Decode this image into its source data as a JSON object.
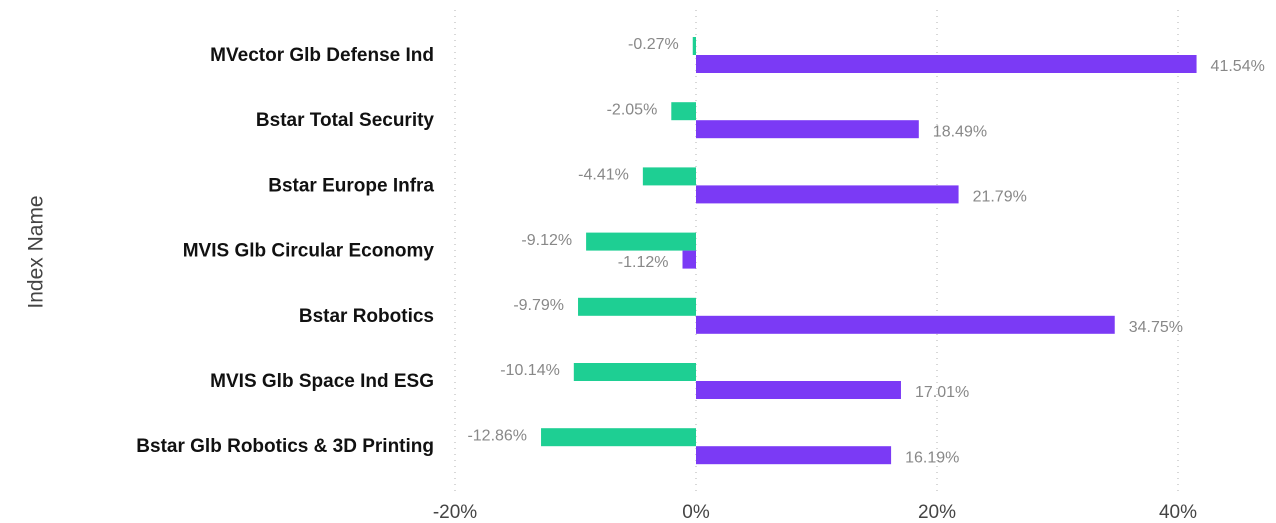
{
  "chart_data": {
    "type": "bar",
    "orientation": "horizontal",
    "y_axis_label": "Index Name",
    "categories": [
      "MVector Glb Defense Ind",
      "Bstar Total Security",
      "Bstar Europe Infra",
      "MVIS Glb Circular Economy",
      "Bstar Robotics",
      "MVIS Glb Space Ind ESG",
      "Bstar Glb Robotics & 3D Printing"
    ],
    "series": [
      {
        "color": "#1ecf93",
        "values": [
          -0.27,
          -2.05,
          -4.41,
          -9.12,
          -9.79,
          -10.14,
          -12.86
        ],
        "value_labels": [
          "-0.27%",
          "-2.05%",
          "-4.41%",
          "-9.12%",
          "-9.79%",
          "-10.14%",
          "-12.86%"
        ]
      },
      {
        "color": "#7b3af5",
        "values": [
          41.54,
          18.49,
          21.79,
          -1.12,
          34.75,
          17.01,
          16.19
        ],
        "value_labels": [
          "41.54%",
          "18.49%",
          "21.79%",
          "-1.12%",
          "34.75%",
          "17.01%",
          "16.19%"
        ]
      }
    ],
    "xlim": [
      -20,
      45
    ],
    "xticks": [
      {
        "value": -20,
        "label": "-20%"
      },
      {
        "value": 0,
        "label": "0%"
      },
      {
        "value": 20,
        "label": "20%"
      },
      {
        "value": 40,
        "label": "40%"
      }
    ],
    "grid": true
  }
}
